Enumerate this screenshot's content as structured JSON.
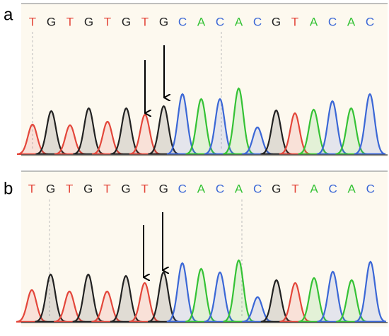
{
  "panels": [
    {
      "label": "a",
      "bases": [
        "T",
        "G",
        "T",
        "G",
        "T",
        "G",
        "T",
        "G",
        "C",
        "A",
        "C",
        "A",
        "C",
        "G",
        "T",
        "A",
        "C",
        "A",
        "C"
      ],
      "peaks": [
        42,
        61,
        41,
        65,
        46,
        65,
        56,
        68,
        85,
        78,
        78,
        93,
        38,
        62,
        58,
        63,
        75,
        65,
        85
      ]
    },
    {
      "label": "b",
      "bases": [
        "T",
        "G",
        "T",
        "G",
        "T",
        "G",
        "T",
        "G",
        "C",
        "A",
        "C",
        "A",
        "C",
        "G",
        "T",
        "A",
        "C",
        "A",
        "C"
      ],
      "peaks": [
        45,
        67,
        43,
        67,
        43,
        65,
        55,
        70,
        83,
        75,
        70,
        87,
        35,
        59,
        55,
        62,
        71,
        59,
        85
      ]
    }
  ],
  "colors": {
    "T": "#e3463a",
    "G": "#222222",
    "C": "#3b67d6",
    "A": "#35c235"
  }
}
